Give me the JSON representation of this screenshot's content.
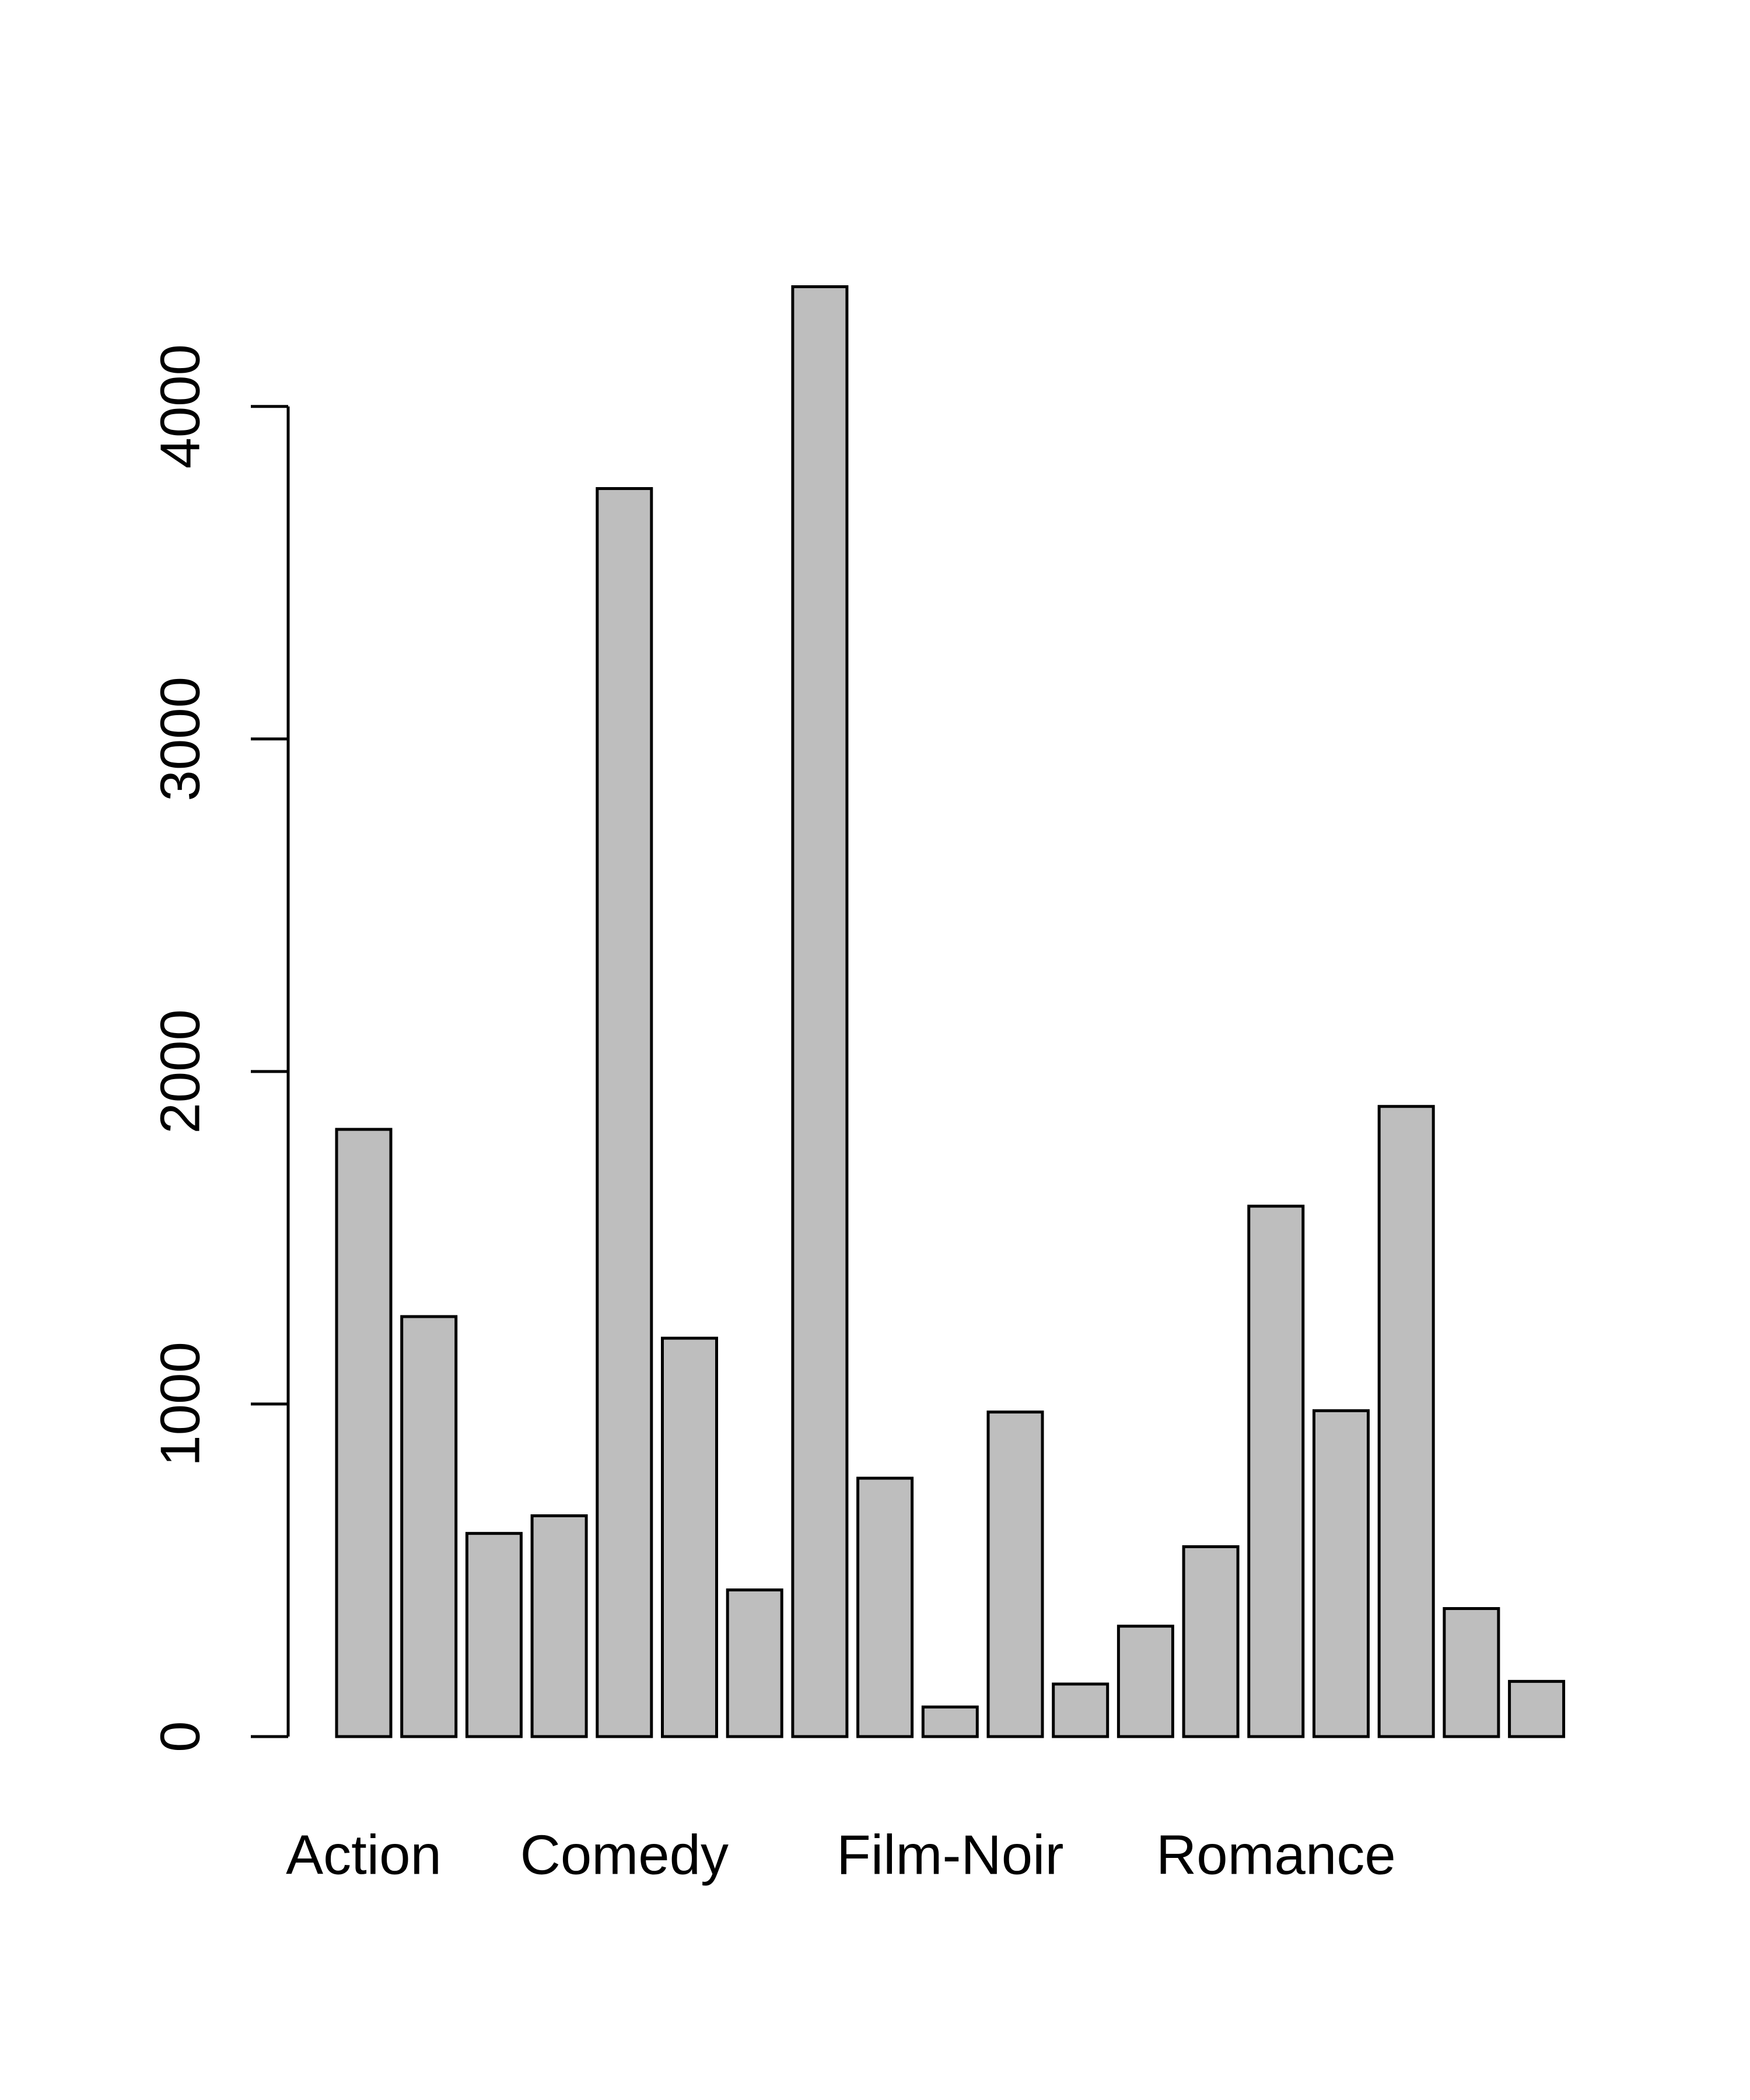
{
  "chart_data": {
    "type": "bar",
    "categories": [
      "Action",
      null,
      null,
      null,
      "Comedy",
      null,
      null,
      null,
      null,
      "Film-Noir",
      null,
      null,
      null,
      null,
      "Romance",
      null,
      null,
      null,
      null
    ],
    "values": [
      1826,
      1263,
      611,
      664,
      3753,
      1198,
      441,
      4360,
      777,
      89,
      976,
      158,
      332,
      571,
      1595,
      980,
      1895,
      385,
      166
    ],
    "color": "#bebebe",
    "ylim": [
      0,
      4360
    ],
    "yticks": [
      0,
      1000,
      2000,
      3000,
      4000
    ]
  }
}
